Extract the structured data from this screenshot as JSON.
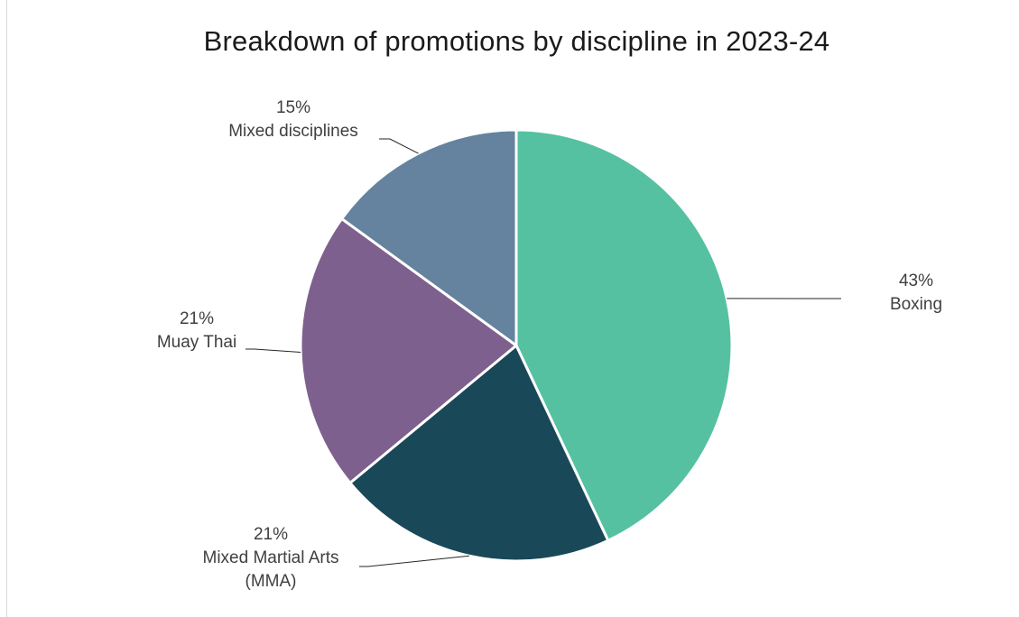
{
  "chart_data": {
    "type": "pie",
    "title": "Breakdown of promotions by discipline in 2023-24",
    "slices": [
      {
        "label": "Boxing",
        "value": 43,
        "display": "43%",
        "color": "#55c1a1"
      },
      {
        "label": "Mixed Martial Arts (MMA)",
        "label_lines": [
          "Mixed Martial Arts",
          "(MMA)"
        ],
        "value": 21,
        "display": "21%",
        "color": "#194958"
      },
      {
        "label": "Muay Thai",
        "value": 21,
        "display": "21%",
        "color": "#7e608e"
      },
      {
        "label": "Mixed disciplines",
        "value": 15,
        "display": "15%",
        "color": "#65839e"
      }
    ],
    "legend": "none",
    "data_labels": "outside with leader lines"
  }
}
